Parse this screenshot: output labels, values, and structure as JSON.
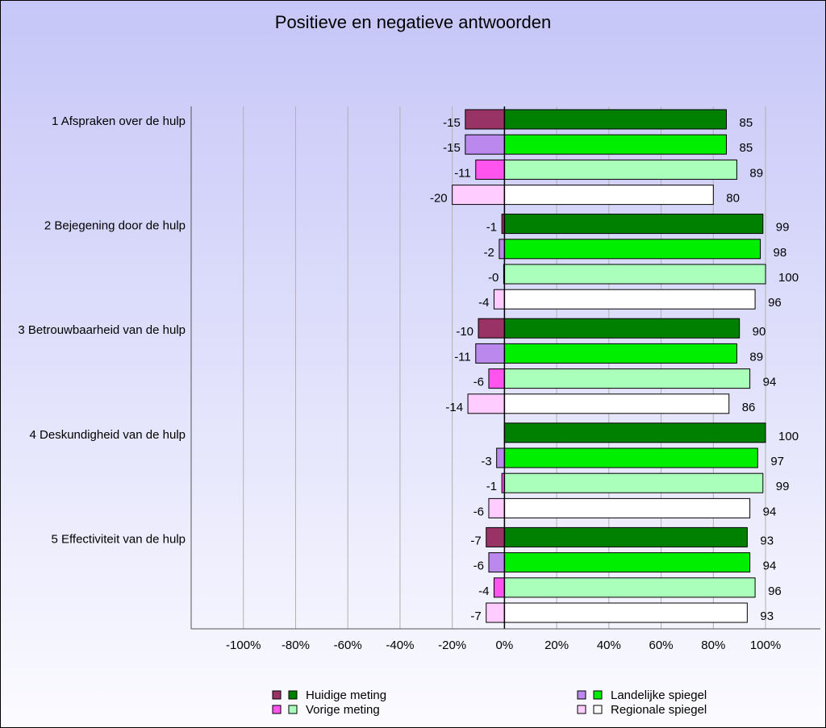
{
  "chart_data": {
    "type": "diverging-bar",
    "title": "Positieve en negatieve antwoorden",
    "categories": [
      "1 Afspraken over de hulp",
      "2 Bejegening door de hulp",
      "3 Betrouwbaarheid van de hulp",
      "4 Deskundigheid van de hulp",
      "5 Effectiviteit van de hulp"
    ],
    "series": [
      {
        "name": "Huidige meting",
        "negative_color": "#993366",
        "positive_color": "#008000",
        "negative": [
          -15,
          -1,
          -10,
          null,
          -7
        ],
        "positive": [
          85,
          99,
          90,
          100,
          93
        ]
      },
      {
        "name": "Landelijke spiegel",
        "negative_color": "#bb88ee",
        "positive_color": "#00ee00",
        "negative": [
          -15,
          -2,
          -11,
          -3,
          -6
        ],
        "positive": [
          85,
          98,
          89,
          97,
          94
        ]
      },
      {
        "name": "Vorige meting",
        "negative_color": "#ff55ee",
        "positive_color": "#aaffbb",
        "negative": [
          -11,
          -0.3,
          -6,
          -1,
          -4
        ],
        "negative_labels": [
          "-11",
          "-0",
          "-6",
          "-1",
          "-4"
        ],
        "positive": [
          89,
          100,
          94,
          99,
          96
        ]
      },
      {
        "name": "Regionale spiegel",
        "negative_color": "#ffccff",
        "positive_color": "#ffffff",
        "negative": [
          -20,
          -4,
          -14,
          -6,
          -7
        ],
        "positive": [
          80,
          96,
          86,
          94,
          93
        ]
      }
    ],
    "xlim": [
      -120,
      121
    ],
    "xticks": [
      {
        "value": -100,
        "label": "-100%"
      },
      {
        "value": -80,
        "label": "-80%"
      },
      {
        "value": -60,
        "label": "-60%"
      },
      {
        "value": -40,
        "label": "-40%"
      },
      {
        "value": -20,
        "label": "-20%"
      },
      {
        "value": 0,
        "label": "0%"
      },
      {
        "value": 20,
        "label": "20%"
      },
      {
        "value": 40,
        "label": "40%"
      },
      {
        "value": 60,
        "label": "60%"
      },
      {
        "value": 80,
        "label": "80%"
      },
      {
        "value": 100,
        "label": "100%"
      }
    ],
    "grid": true
  }
}
